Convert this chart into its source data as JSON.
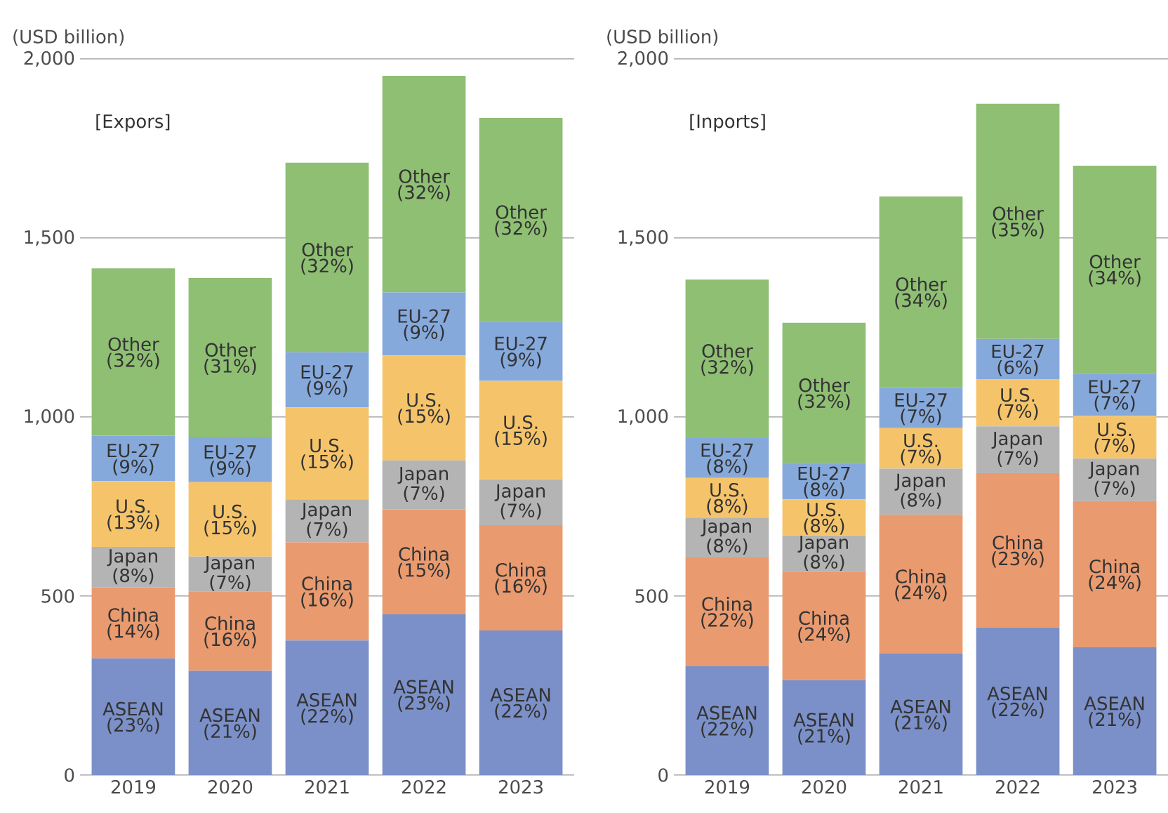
{
  "chart_data": [
    {
      "type": "bar",
      "stacked": true,
      "ylabel": "(USD billion)",
      "categories": [
        "2019",
        "2020",
        "2021",
        "2022",
        "2023"
      ],
      "ylim": [
        0,
        2000
      ],
      "yticks": [
        0,
        500,
        {
          "value": 1000,
          "label": "1,000"
        },
        {
          "value": 1500,
          "label": "1,500"
        },
        {
          "value": 2000,
          "label": "2,000"
        }
      ],
      "grid": "y",
      "legend": false,
      "series": [
        {
          "name": "ASEAN",
          "color": "#7b90c8",
          "values": [
            326,
            291,
            376,
            449,
            404
          ]
        },
        {
          "name": "China",
          "color": "#e99a6f",
          "values": [
            198,
            222,
            274,
            293,
            294
          ]
        },
        {
          "name": "Japan",
          "color": "#b4b4b4",
          "values": [
            113,
            97,
            120,
            137,
            128
          ]
        },
        {
          "name": "U.S.",
          "color": "#f5c46a",
          "values": [
            184,
            208,
            257,
            293,
            275
          ]
        },
        {
          "name": "EU-27",
          "color": "#86a9dc",
          "values": [
            127,
            125,
            154,
            176,
            165
          ]
        },
        {
          "name": "Other",
          "color": "#8ebf73",
          "values": [
            467,
            445,
            529,
            605,
            569
          ]
        }
      ],
      "annotations": [
        "[Expors]",
        "(23%)",
        "(21%)",
        "(22%)",
        "(23%)",
        "(22%)",
        "(14%)",
        "(16%)",
        "(16%)",
        "(15%)",
        "(16%)",
        "(8%)",
        "(7%)",
        "(7%)",
        "(7%)",
        "(7%)",
        "(13%)",
        "(15%)",
        "(15%)",
        "(15%)",
        "(15%)",
        "(9%)",
        "(9%)",
        "(9%)",
        "(9%)",
        "(9%)",
        "(32%)",
        "(31%)",
        "(32%)",
        "(32%)",
        "(32%)"
      ]
    },
    {
      "type": "bar",
      "stacked": true,
      "ylabel": "(USD billion)",
      "categories": [
        "2019",
        "2020",
        "2021",
        "2022",
        "2023"
      ],
      "ylim": [
        0,
        2000
      ],
      "yticks": [
        0,
        500,
        {
          "value": 1000,
          "label": "1,000"
        },
        {
          "value": 1500,
          "label": "1,500"
        },
        {
          "value": 2000,
          "label": "2,000"
        }
      ],
      "grid": "y",
      "legend": false,
      "series": [
        {
          "name": "ASEAN",
          "color": "#7b90c8",
          "values": [
            304,
            265,
            339,
            412,
            357
          ]
        },
        {
          "name": "China",
          "color": "#e99a6f",
          "values": [
            304,
            303,
            388,
            431,
            408
          ]
        },
        {
          "name": "Japan",
          "color": "#b4b4b4",
          "values": [
            111,
            101,
            129,
            131,
            119
          ]
        },
        {
          "name": "U.S.",
          "color": "#f5c46a",
          "values": [
            111,
            101,
            113,
            131,
            119
          ]
        },
        {
          "name": "EU-27",
          "color": "#86a9dc",
          "values": [
            111,
            101,
            113,
            113,
            119
          ]
        },
        {
          "name": "Other",
          "color": "#8ebf73",
          "values": [
            443,
            392,
            534,
            657,
            580
          ]
        }
      ],
      "annotations": [
        "[Inports]",
        "(22%)",
        "(21%)",
        "(21%)",
        "(22%)",
        "(21%)",
        "(22%)",
        "(24%)",
        "(24%)",
        "(23%)",
        "(24%)",
        "(8%)",
        "(8%)",
        "(8%)",
        "(7%)",
        "(7%)",
        "(8%)",
        "(8%)",
        "(7%)",
        "(7%)",
        "(7%)",
        "(8%)",
        "(8%)",
        "(7%)",
        "(6%)",
        "(7%)",
        "(32%)",
        "(32%)",
        "(34%)",
        "(35%)",
        "(34%)"
      ]
    }
  ]
}
